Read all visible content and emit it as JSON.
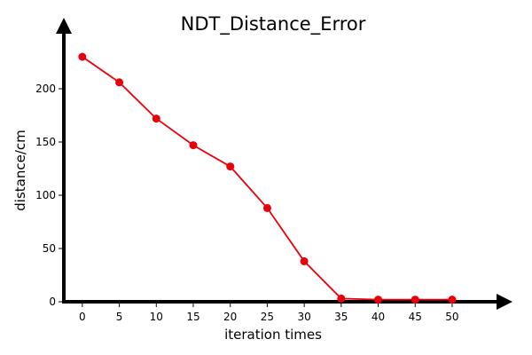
{
  "chart_data": {
    "type": "line",
    "title": "NDT_Distance_Error",
    "xlabel": "iteration times",
    "ylabel": "distance/cm",
    "x": [
      0,
      5,
      10,
      15,
      20,
      25,
      30,
      35,
      40,
      45,
      50
    ],
    "series": [
      {
        "values": [
          230,
          206,
          172,
          147,
          127,
          88,
          38,
          3,
          2,
          2,
          2
        ],
        "color": "#e8000b"
      }
    ],
    "x_ticks": [
      "0",
      "5",
      "10",
      "15",
      "20",
      "25",
      "30",
      "35",
      "40",
      "45",
      "50"
    ],
    "y_ticks": [
      "0",
      "50",
      "100",
      "150",
      "200"
    ],
    "xlim": [
      -2.5,
      56
    ],
    "ylim": [
      0,
      250
    ],
    "grid": false,
    "axis_color": "#000000"
  }
}
